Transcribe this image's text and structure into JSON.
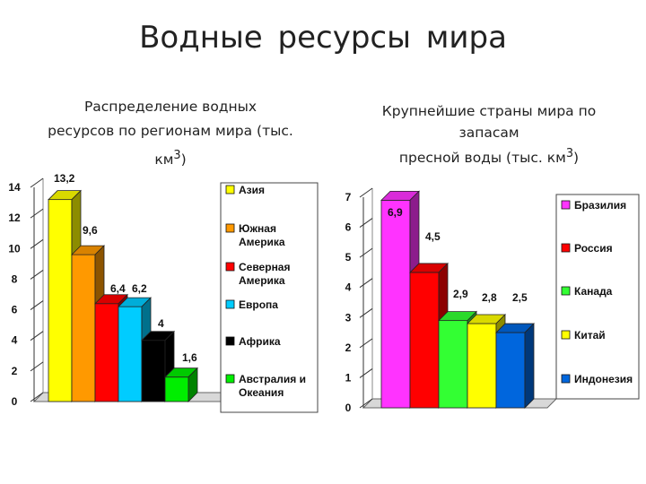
{
  "page": {
    "title": "Водные  ресурсы  мира"
  },
  "chart_data": [
    {
      "type": "bar",
      "title": "Распределение водных ресурсов по регионам мира (тыс. км³)",
      "title_line1": "Распределение водных",
      "title_line2": "ресурсов  по  регионам  мира  (тыс.",
      "title_line3": "км",
      "title_sup": "3",
      "title_close": ")",
      "categories": [
        "Азия",
        "Южная Америка",
        "Северная Америка",
        "Европа",
        "Африка",
        "Австралия и Океания"
      ],
      "legend_lines": [
        [
          "Азия"
        ],
        [
          "Южная",
          "Америка"
        ],
        [
          "Северная",
          "Америка"
        ],
        [
          "Европа"
        ],
        [
          "Африка"
        ],
        [
          "Австралия и",
          "Океания"
        ]
      ],
      "values": [
        13.2,
        9.6,
        6.4,
        6.2,
        4,
        1.6
      ],
      "value_labels": [
        "13,2",
        "9,6",
        "6,4",
        "6,2",
        "4",
        "1,6"
      ],
      "colors": [
        "#ffff00",
        "#ff9900",
        "#ff0000",
        "#00ccff",
        "#000000",
        "#00ee00"
      ],
      "yticks": [
        "0",
        "2",
        "4",
        "6",
        "8",
        "10",
        "12",
        "14"
      ],
      "ylim": [
        0,
        14
      ],
      "legend_position": "right"
    },
    {
      "type": "bar",
      "title": "Крупнейшие страны мира по запасам пресной воды (тыс. км³)",
      "title_line1": "Крупнейшие страны мира  по",
      "title_line2": "запасам",
      "title_line3": "пресной воды  (тыс. км",
      "title_sup": "3",
      "title_close": ")",
      "categories": [
        "Бразилия",
        "Россия",
        "Канада",
        "Китай",
        "Индонезия"
      ],
      "legend_lines": [
        [
          "Бразилия"
        ],
        [
          "Россия"
        ],
        [
          "Канада"
        ],
        [
          "Китай"
        ],
        [
          "Индонезия"
        ]
      ],
      "values": [
        6.9,
        4.5,
        2.9,
        2.8,
        2.5
      ],
      "value_labels": [
        "6,9",
        "4,5",
        "2,9",
        "2,8",
        "2,5"
      ],
      "colors": [
        "#ff33ff",
        "#ff0000",
        "#33ff33",
        "#ffff00",
        "#0066dd"
      ],
      "yticks": [
        "0",
        "1",
        "2",
        "3",
        "4",
        "5",
        "6",
        "7"
      ],
      "ylim": [
        0,
        7
      ],
      "legend_position": "right"
    }
  ]
}
